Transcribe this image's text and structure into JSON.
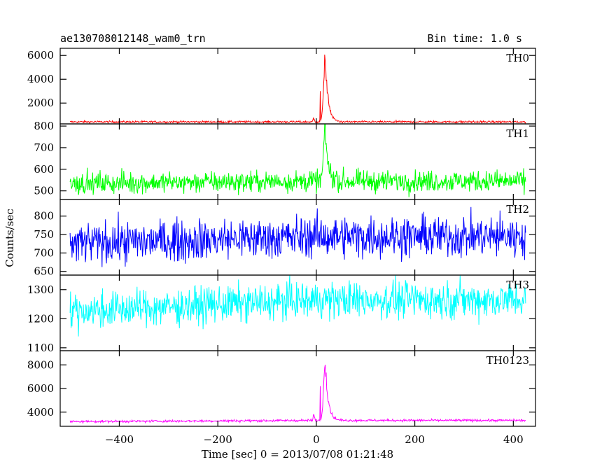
{
  "header": {
    "title": "ae130708012148_wam0_trn",
    "bin_time": "Bin time: 1.0 s"
  },
  "chart_data": {
    "type": "line",
    "title": "ae130708012148_wam0_trn",
    "xlabel": "Time [sec] 0 = 2013/07/08 01:21:48",
    "ylabel": "Counts/sec",
    "xlim": [
      -520,
      445
    ],
    "x_ticks": [
      -400,
      -200,
      0,
      200,
      400
    ],
    "x_tick_labels": [
      "−400",
      "−200",
      "0",
      "200",
      "400"
    ],
    "x_range_data": [
      -500,
      425
    ],
    "grid": false,
    "panels": [
      {
        "name": "TH0",
        "color": "#ff0000",
        "ylim": [
          250,
          6600
        ],
        "y_ticks": [
          2000,
          4000,
          6000
        ],
        "baseline": 420,
        "noise": 60,
        "drift": 0,
        "peak": 6500,
        "peak_time": 18,
        "precursor": {
          "time": -5,
          "value": 1000
        },
        "spikes": [
          {
            "time": 8,
            "value": 3000
          }
        ]
      },
      {
        "name": "TH1",
        "color": "#00ff00",
        "ylim": [
          460,
          810
        ],
        "y_ticks": [
          500,
          600,
          700,
          800
        ],
        "baseline": 535,
        "noise": 35,
        "drift": 10,
        "peak": 800,
        "peak_time": 18,
        "spikes": []
      },
      {
        "name": "TH2",
        "color": "#0000ff",
        "ylim": [
          640,
          845
        ],
        "y_ticks": [
          650,
          700,
          750,
          800
        ],
        "baseline": 725,
        "noise": 40,
        "drift": 20,
        "peak": 0,
        "peak_time": 18,
        "spikes": []
      },
      {
        "name": "TH3",
        "color": "#00ffff",
        "ylim": [
          1090,
          1350
        ],
        "y_ticks": [
          1100,
          1200,
          1300
        ],
        "baseline": 1225,
        "noise": 45,
        "drift": 40,
        "peak": 0,
        "peak_time": 18,
        "spikes": []
      },
      {
        "name": "TH0123",
        "color": "#ff00ff",
        "ylim": [
          2800,
          9200
        ],
        "y_ticks": [
          4000,
          6000,
          8000
        ],
        "baseline": 3200,
        "noise": 70,
        "drift": 100,
        "peak": 9000,
        "peak_time": 18,
        "precursor": {
          "time": -5,
          "value": 4200
        },
        "spikes": [
          {
            "time": 8,
            "value": 6200
          }
        ]
      }
    ]
  }
}
